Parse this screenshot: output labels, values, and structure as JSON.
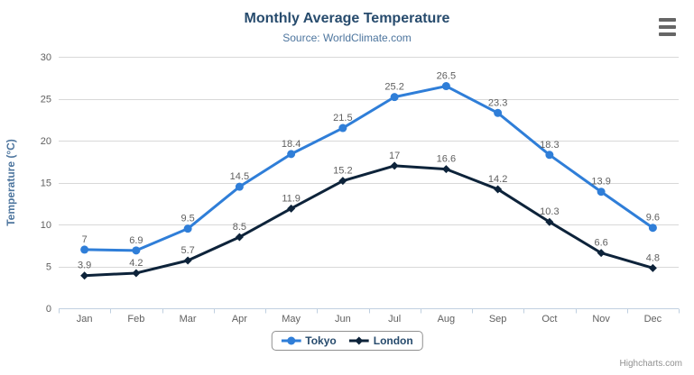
{
  "colors": {
    "title": "#274b6d",
    "subtitle": "#4d759e",
    "axis_label": "#606060",
    "y_axis_title": "#4d759e",
    "data_label": "#606060",
    "grid": "#d8d8d8",
    "axis_line": "#c0d0e0",
    "legend_text": "#274b6d",
    "legend_border": "#909090",
    "credits": "#909090",
    "menu_icon": "#666666"
  },
  "credits": "Highcharts.com",
  "export_menu": {
    "icon": "hamburger-icon"
  },
  "chart_data": {
    "type": "line",
    "title": "Monthly Average Temperature",
    "subtitle": "Source: WorldClimate.com",
    "categories": [
      "Jan",
      "Feb",
      "Mar",
      "Apr",
      "May",
      "Jun",
      "Jul",
      "Aug",
      "Sep",
      "Oct",
      "Nov",
      "Dec"
    ],
    "series": [
      {
        "name": "Tokyo",
        "color": "#2f7ed8",
        "marker": "circle",
        "values": [
          7,
          6.9,
          9.5,
          14.5,
          18.4,
          21.5,
          25.2,
          26.5,
          23.3,
          18.3,
          13.9,
          9.6
        ]
      },
      {
        "name": "London",
        "color": "#0d233a",
        "marker": "diamond",
        "values": [
          3.9,
          4.2,
          5.7,
          8.5,
          11.9,
          15.2,
          17,
          16.6,
          14.2,
          10.3,
          6.6,
          4.8
        ]
      }
    ],
    "xlabel": "",
    "ylabel": "Temperature (°C)",
    "ylim": [
      0,
      30
    ],
    "ytick_step": 5,
    "grid": true,
    "legend_position": "bottom",
    "data_labels": true
  }
}
